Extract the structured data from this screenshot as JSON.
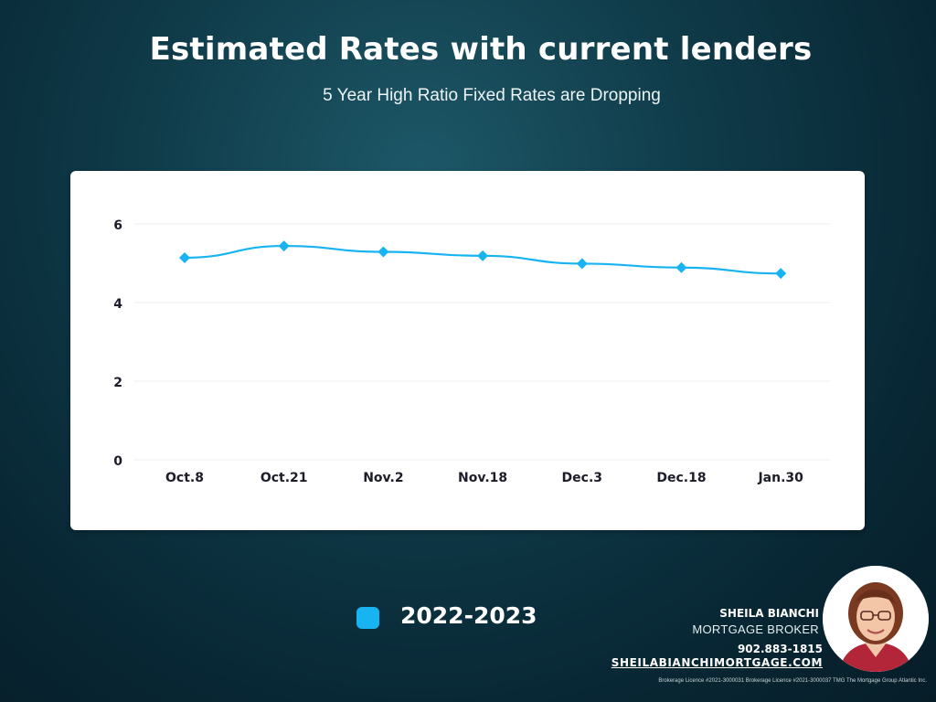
{
  "header": {
    "title": "Estimated Rates with current lenders",
    "subtitle": "5 Year High Ratio Fixed Rates are Dropping"
  },
  "chart_data": {
    "type": "line",
    "categories": [
      "Oct.8",
      "Oct.21",
      "Nov.2",
      "Nov.18",
      "Dec.3",
      "Dec.18",
      "Jan.30"
    ],
    "series": [
      {
        "name": "2022-2023",
        "values": [
          5.14,
          5.44,
          5.29,
          5.19,
          4.99,
          4.89,
          4.74
        ],
        "color": "#18b4f2"
      }
    ],
    "ylim": [
      0,
      6.5
    ],
    "yticks": [
      0,
      2,
      4,
      6
    ],
    "grid": true,
    "legend_placement": "bottom"
  },
  "legend": {
    "label": "2022-2023"
  },
  "broker": {
    "name": "SHEILA BIANCHI",
    "title": "MORTGAGE BROKER",
    "phone": "902.883-1815",
    "website": "SHEILABIANCHIMORTGAGE.COM",
    "licence": "Brokerage Licence #2021-3000031  Brokerage Licence #2021-3000037 TMG The Mortgage Group Atlantic Inc."
  },
  "colors": {
    "accent": "#18b4f2",
    "background": "#0f3a48"
  }
}
